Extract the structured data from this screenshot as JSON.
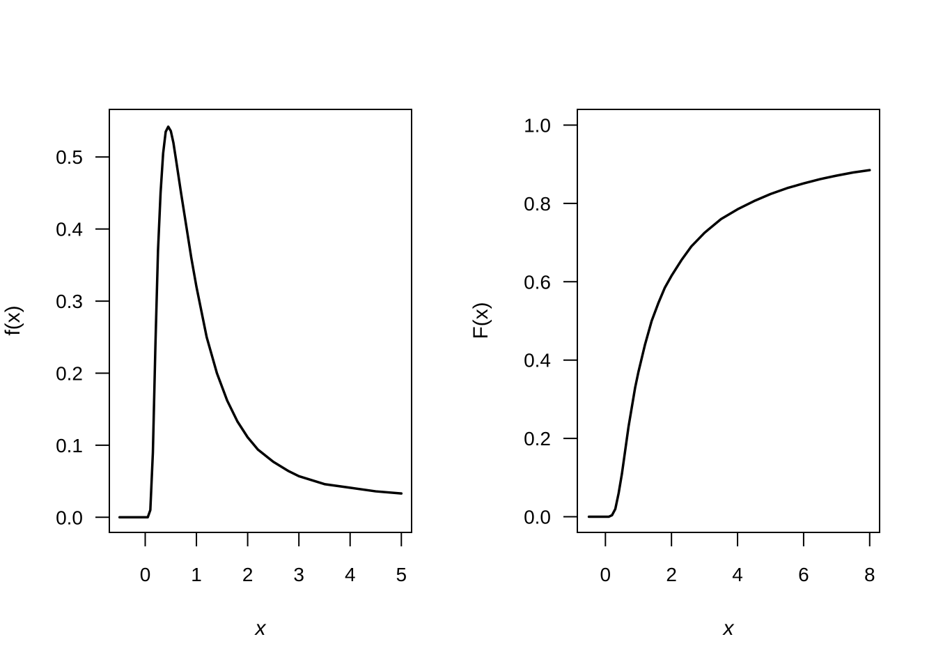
{
  "chart_data": [
    {
      "type": "line",
      "xlabel": "x",
      "ylabel": "f(x)",
      "xlim": [
        -0.7,
        5.2
      ],
      "ylim": [
        -0.021,
        0.566
      ],
      "x_ticks": [
        0,
        1,
        2,
        3,
        4,
        5
      ],
      "y_ticks": [
        0.0,
        0.1,
        0.2,
        0.3,
        0.4,
        0.5
      ],
      "y_tick_labels": [
        "0.0",
        "0.1",
        "0.2",
        "0.3",
        "0.4",
        "0.5"
      ],
      "grid": false,
      "series": [
        {
          "x": [
            -0.5,
            -0.4,
            -0.3,
            -0.2,
            -0.1,
            0.0,
            0.05,
            0.1,
            0.15,
            0.2,
            0.25,
            0.3,
            0.35,
            0.4,
            0.45,
            0.5,
            0.55,
            0.6,
            0.7,
            0.8,
            0.9,
            1.0,
            1.2,
            1.4,
            1.6,
            1.8,
            2.0,
            2.2,
            2.5,
            2.8,
            3.0,
            3.5,
            4.0,
            4.5,
            5.0
          ],
          "y": [
            0.0,
            0.0,
            0.0,
            0.0,
            0.0,
            0.0,
            0.0,
            0.01,
            0.09,
            0.24,
            0.37,
            0.45,
            0.505,
            0.535,
            0.542,
            0.536,
            0.52,
            0.497,
            0.45,
            0.405,
            0.36,
            0.32,
            0.25,
            0.2,
            0.162,
            0.133,
            0.111,
            0.094,
            0.077,
            0.064,
            0.057,
            0.046,
            0.041,
            0.036,
            0.033
          ]
        }
      ]
    },
    {
      "type": "line",
      "xlabel": "x",
      "ylabel": "F(x)",
      "xlim": [
        -0.85,
        8.3
      ],
      "ylim": [
        -0.04,
        1.04
      ],
      "x_ticks": [
        0,
        2,
        4,
        6,
        8
      ],
      "y_ticks": [
        0.0,
        0.2,
        0.4,
        0.6,
        0.8,
        1.0
      ],
      "y_tick_labels": [
        "0.0",
        "0.2",
        "0.4",
        "0.6",
        "0.8",
        "1.0"
      ],
      "grid": false,
      "series": [
        {
          "x": [
            -0.5,
            -0.3,
            -0.1,
            0.0,
            0.1,
            0.2,
            0.3,
            0.4,
            0.5,
            0.6,
            0.7,
            0.8,
            0.9,
            1.0,
            1.2,
            1.4,
            1.6,
            1.8,
            2.0,
            2.3,
            2.6,
            3.0,
            3.5,
            4.0,
            4.5,
            5.0,
            5.5,
            6.0,
            6.5,
            7.0,
            7.5,
            8.0
          ],
          "y": [
            0.0,
            0.0,
            0.0,
            0.0,
            0.0,
            0.004,
            0.02,
            0.06,
            0.11,
            0.17,
            0.23,
            0.28,
            0.33,
            0.37,
            0.44,
            0.5,
            0.545,
            0.585,
            0.615,
            0.655,
            0.69,
            0.725,
            0.76,
            0.785,
            0.806,
            0.824,
            0.839,
            0.851,
            0.862,
            0.871,
            0.879,
            0.885
          ]
        }
      ]
    }
  ]
}
